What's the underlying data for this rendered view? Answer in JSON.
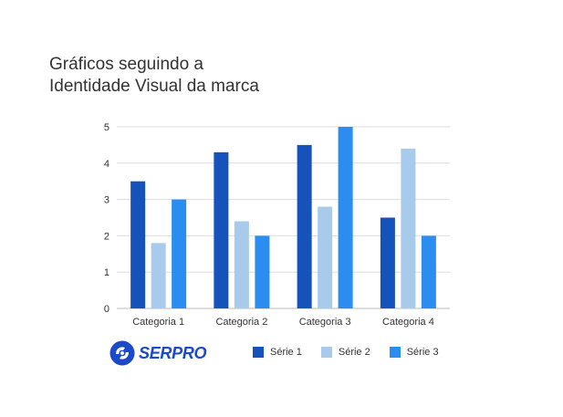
{
  "title_lines": [
    "Gráficos seguindo a",
    "Identidade Visual da marca"
  ],
  "brand": {
    "name": "SERPRO",
    "color": "#1a49c9"
  },
  "chart_data": {
    "type": "bar",
    "categories": [
      "Categoria 1",
      "Categoria 2",
      "Categoria 3",
      "Categoria 4"
    ],
    "series": [
      {
        "name": "Série 1",
        "values": [
          3.5,
          4.3,
          4.5,
          2.5
        ],
        "color": "#1552b9"
      },
      {
        "name": "Série 2",
        "values": [
          1.8,
          2.4,
          2.8,
          4.4
        ],
        "color": "#a8cbec"
      },
      {
        "name": "Série 3",
        "values": [
          3.0,
          2.0,
          5.0,
          2.0
        ],
        "color": "#2b8df0"
      }
    ],
    "ylim": [
      0,
      5
    ],
    "yticks": [
      "0",
      "1",
      "2",
      "3",
      "4",
      "5"
    ],
    "grid": true,
    "legend": "bottom"
  }
}
